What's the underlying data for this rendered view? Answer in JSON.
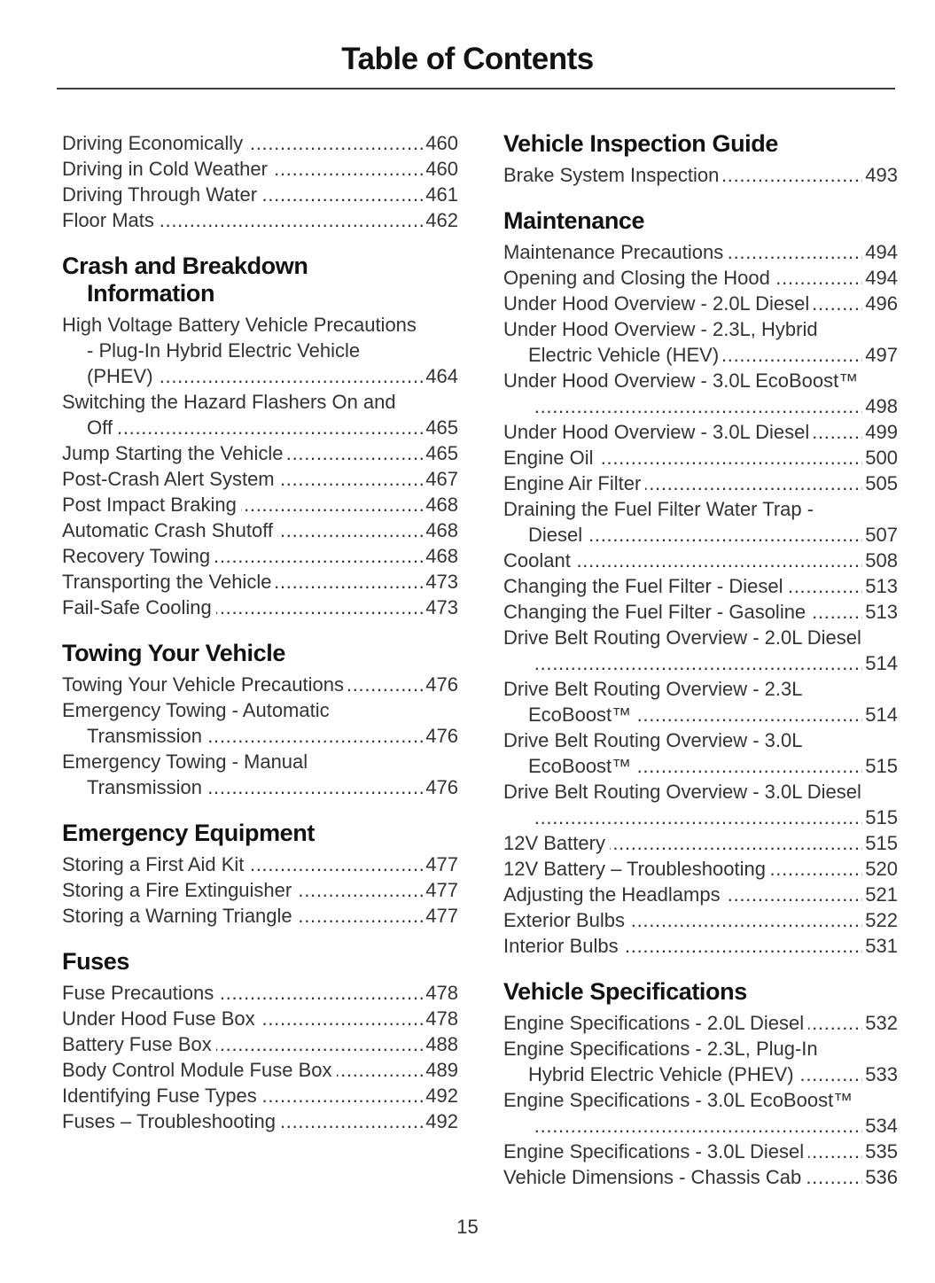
{
  "title": "Table of Contents",
  "footer_page_number": "15",
  "colors": {
    "text": "#333333",
    "heading": "#121212",
    "rule": "#3d3d3d",
    "background": "#ffffff"
  },
  "columns": {
    "left": [
      {
        "heading": "",
        "entries": [
          {
            "label": "Driving Economically",
            "page": "460"
          },
          {
            "label": "Driving in Cold Weather",
            "page": "460"
          },
          {
            "label": "Driving Through Water",
            "page": "461"
          },
          {
            "label": "Floor Mats",
            "page": "462"
          }
        ]
      },
      {
        "heading": "Crash and Breakdown\nInformation",
        "entries": [
          {
            "label": "High Voltage Battery Vehicle Precautions\n- Plug-In Hybrid Electric Vehicle\n(PHEV) ",
            "page": "464"
          },
          {
            "label": "Switching the Hazard Flashers On and\nOff ",
            "page": "465"
          },
          {
            "label": "Jump Starting the Vehicle",
            "page": "465"
          },
          {
            "label": "Post-Crash Alert System",
            "page": "467"
          },
          {
            "label": "Post Impact Braking",
            "page": "468"
          },
          {
            "label": "Automatic Crash Shutoff",
            "page": "468"
          },
          {
            "label": "Recovery Towing",
            "page": "468"
          },
          {
            "label": "Transporting the Vehicle",
            "page": "473"
          },
          {
            "label": "Fail-Safe Cooling",
            "page": "473"
          }
        ]
      },
      {
        "heading": "Towing Your Vehicle",
        "entries": [
          {
            "label": "Towing Your Vehicle Precautions",
            "page": "476"
          },
          {
            "label": "Emergency Towing - Automatic\nTransmission ",
            "page": "476"
          },
          {
            "label": "Emergency Towing - Manual\nTransmission ",
            "page": "476"
          }
        ]
      },
      {
        "heading": "Emergency Equipment",
        "entries": [
          {
            "label": "Storing a First Aid Kit",
            "page": "477"
          },
          {
            "label": "Storing a Fire Extinguisher",
            "page": "477"
          },
          {
            "label": "Storing a Warning Triangle",
            "page": "477"
          }
        ]
      },
      {
        "heading": "Fuses",
        "entries": [
          {
            "label": "Fuse Precautions",
            "page": "478"
          },
          {
            "label": "Under Hood Fuse Box",
            "page": "478"
          },
          {
            "label": "Battery Fuse Box",
            "page": "488"
          },
          {
            "label": "Body Control Module Fuse Box",
            "page": "489"
          },
          {
            "label": "Identifying Fuse Types",
            "page": "492"
          },
          {
            "label": "Fuses – Troubleshooting",
            "page": "492"
          }
        ]
      }
    ],
    "right": [
      {
        "heading": "Vehicle Inspection Guide",
        "entries": [
          {
            "label": "Brake System Inspection",
            "page": "493"
          }
        ]
      },
      {
        "heading": "Maintenance",
        "entries": [
          {
            "label": "Maintenance Precautions",
            "page": "494"
          },
          {
            "label": "Opening and Closing the Hood",
            "page": "494"
          },
          {
            "label": "Under Hood Overview - 2.0L Diesel",
            "page": "496"
          },
          {
            "label": "Under Hood Overview - 2.3L, Hybrid\nElectric Vehicle (HEV)",
            "page": "497"
          },
          {
            "label": "Under Hood Overview - 3.0L EcoBoost™\n",
            "page": "498"
          },
          {
            "label": "Under Hood Overview - 3.0L Diesel",
            "page": "499"
          },
          {
            "label": "Engine Oil",
            "page": "500"
          },
          {
            "label": "Engine Air Filter",
            "page": "505"
          },
          {
            "label": "Draining the Fuel Filter Water Trap -\nDiesel ",
            "page": "507"
          },
          {
            "label": "Coolant ",
            "page": "508"
          },
          {
            "label": "Changing the Fuel Filter - Diesel",
            "page": "513"
          },
          {
            "label": "Changing the Fuel Filter - Gasoline",
            "page": "513"
          },
          {
            "label": "Drive Belt Routing Overview - 2.0L Diesel\n",
            "page": "514"
          },
          {
            "label": "Drive Belt Routing Overview - 2.3L\nEcoBoost™ ",
            "page": "514"
          },
          {
            "label": "Drive Belt Routing Overview - 3.0L\nEcoBoost™ ",
            "page": "515"
          },
          {
            "label": "Drive Belt Routing Overview - 3.0L Diesel\n",
            "page": "515"
          },
          {
            "label": "12V Battery",
            "page": "515"
          },
          {
            "label": "12V Battery – Troubleshooting",
            "page": "520"
          },
          {
            "label": "Adjusting the Headlamps",
            "page": "521"
          },
          {
            "label": "Exterior Bulbs",
            "page": "522"
          },
          {
            "label": "Interior Bulbs",
            "page": "531"
          }
        ]
      },
      {
        "heading": "Vehicle Specifications",
        "entries": [
          {
            "label": "Engine Specifications - 2.0L Diesel",
            "page": "532"
          },
          {
            "label": "Engine Specifications - 2.3L, Plug-In\nHybrid Electric Vehicle (PHEV)",
            "page": "533"
          },
          {
            "label": "Engine Specifications - 3.0L EcoBoost™\n",
            "page": "534"
          },
          {
            "label": "Engine Specifications - 3.0L Diesel",
            "page": "535"
          },
          {
            "label": "Vehicle Dimensions - Chassis Cab",
            "page": "536"
          }
        ]
      }
    ]
  }
}
